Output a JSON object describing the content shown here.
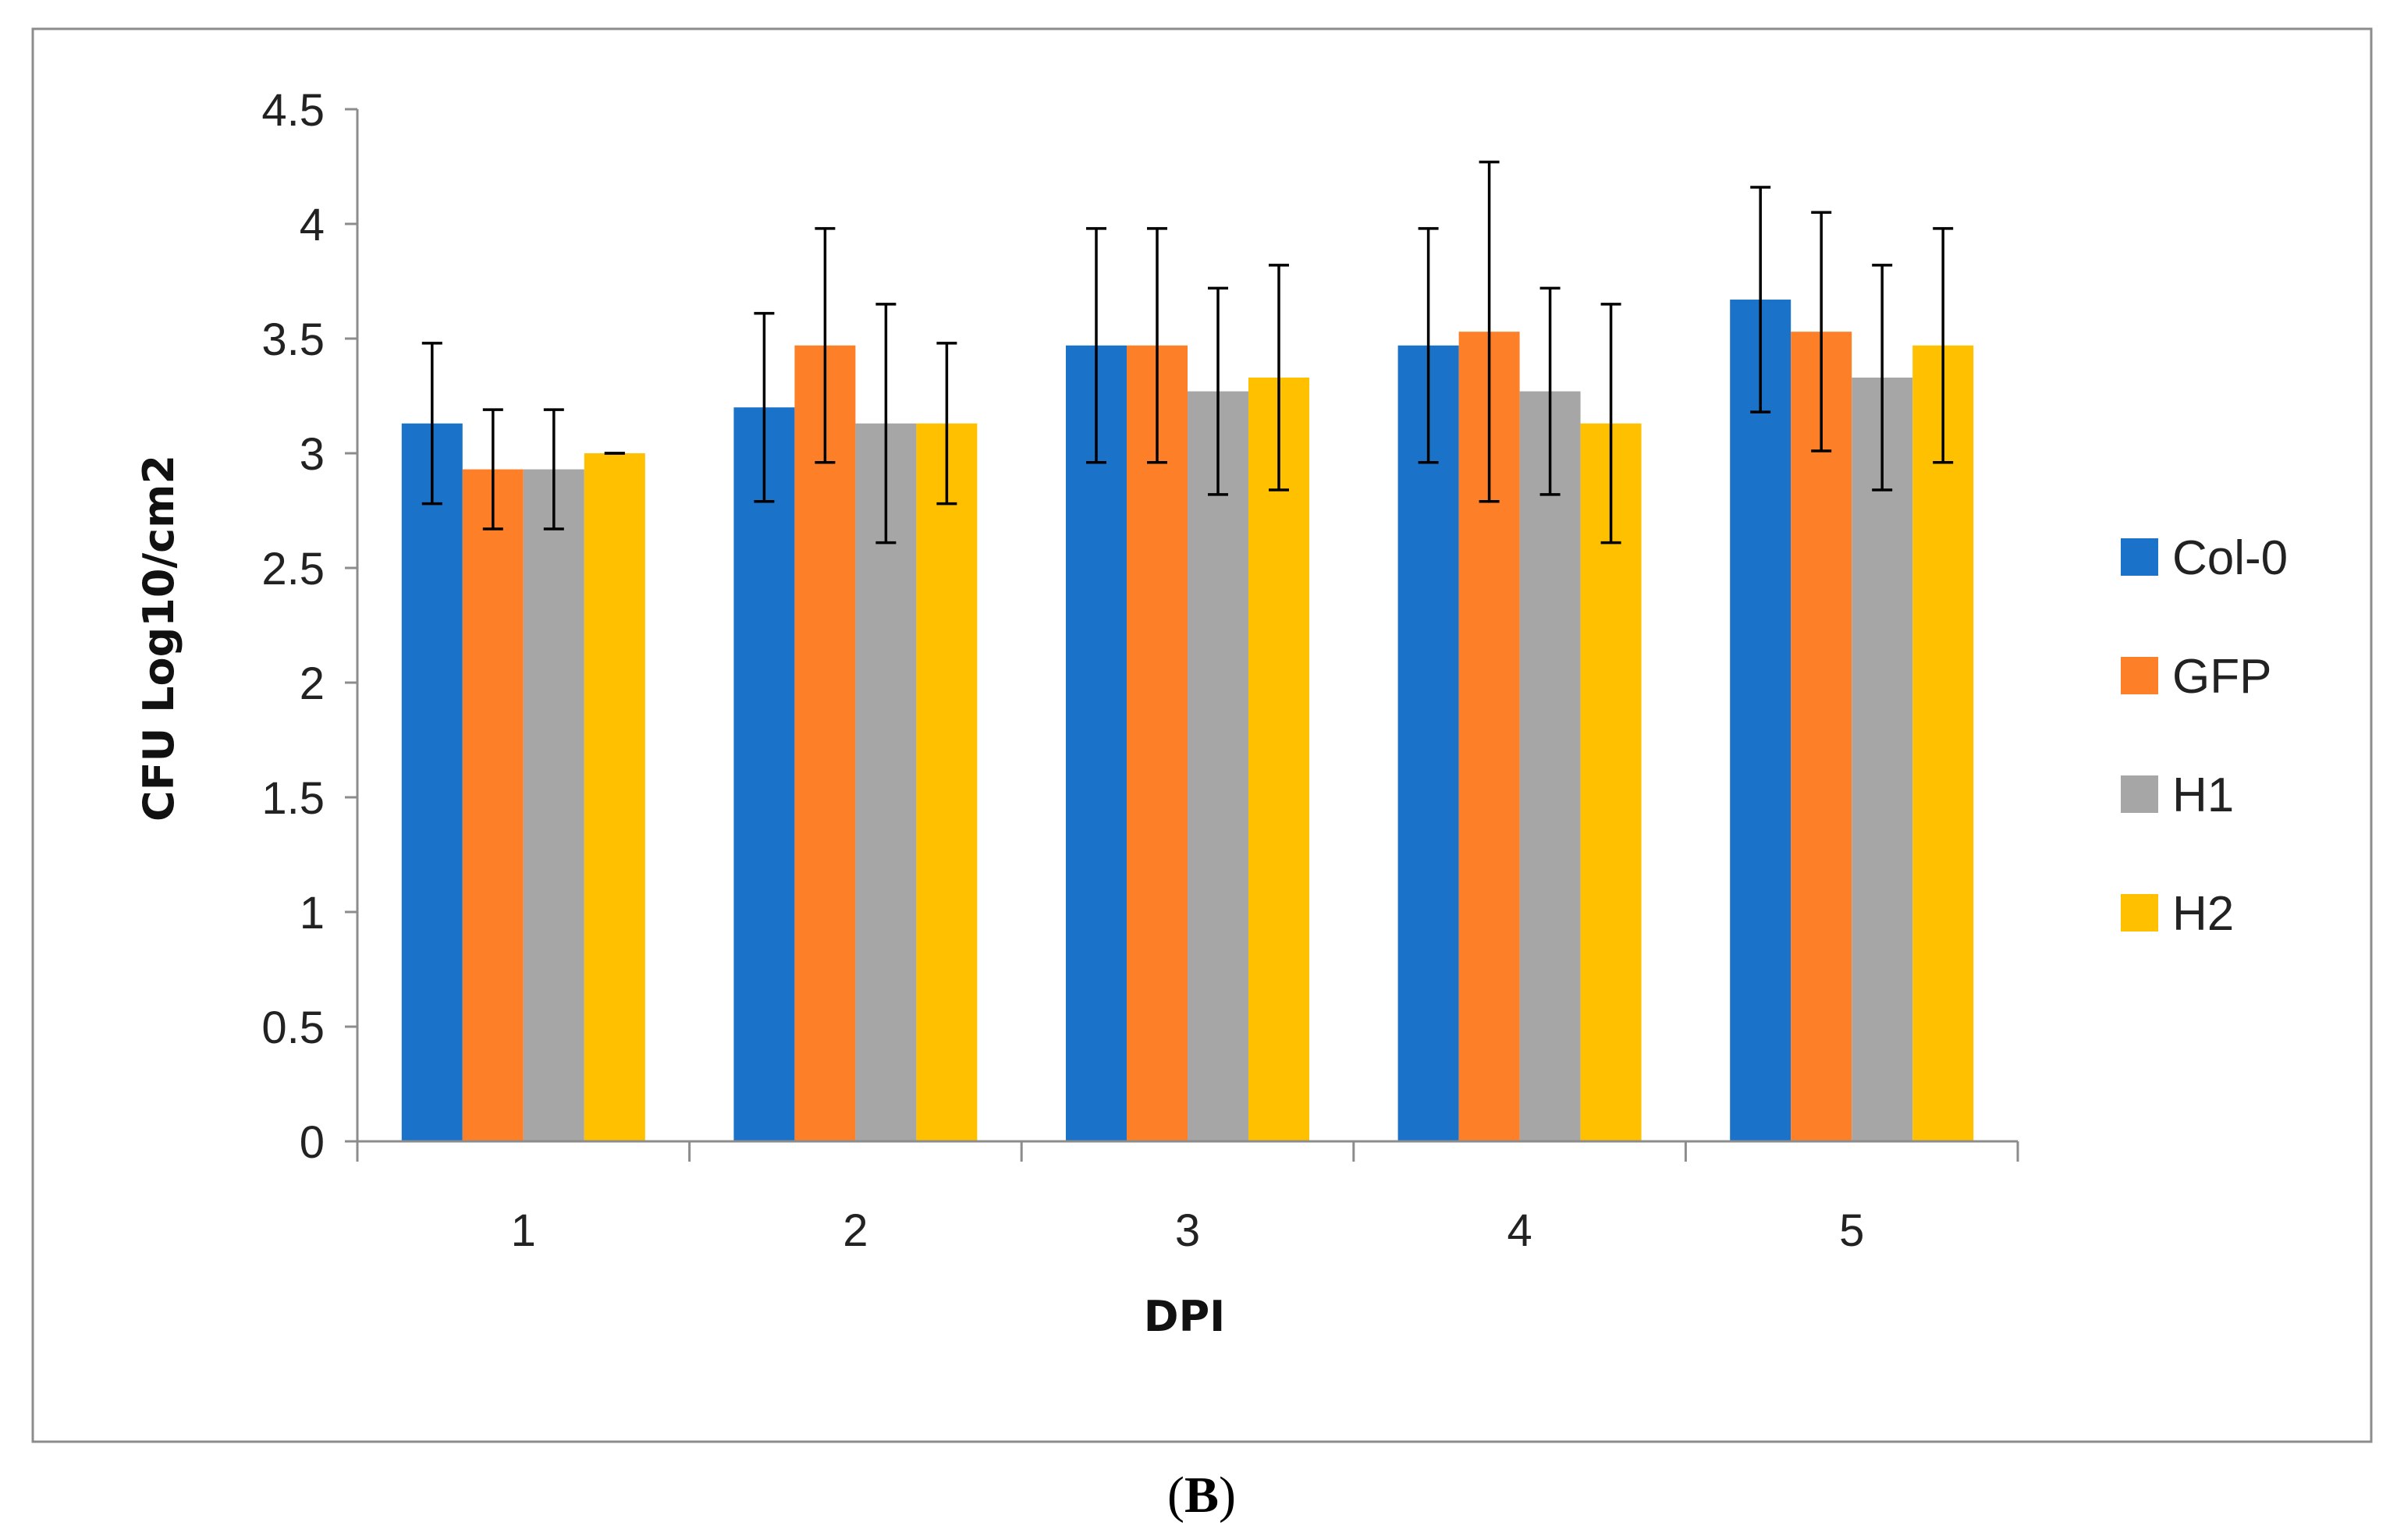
{
  "chart_data": {
    "type": "bar",
    "title": "",
    "xlabel": "DPI",
    "ylabel": "CFU Log10/cm2",
    "ylim": [
      0,
      4.5
    ],
    "yticks": [
      "0",
      "0.5",
      "1",
      "1.5",
      "2",
      "2.5",
      "3",
      "3.5",
      "4",
      "4.5"
    ],
    "categories": [
      "1",
      "2",
      "3",
      "4",
      "5"
    ],
    "series": [
      {
        "name": "Col-0",
        "color": "#1a73c8",
        "values": [
          3.13,
          3.2,
          3.47,
          3.47,
          3.67
        ],
        "errors": [
          0.35,
          0.41,
          0.51,
          0.51,
          0.49
        ]
      },
      {
        "name": "GFP",
        "color": "#fd7f28",
        "values": [
          2.93,
          3.47,
          3.47,
          3.53,
          3.53
        ],
        "errors": [
          0.26,
          0.51,
          0.51,
          0.74,
          0.52
        ]
      },
      {
        "name": "H1",
        "color": "#a6a6a6",
        "values": [
          2.93,
          3.13,
          3.27,
          3.27,
          3.33
        ],
        "errors": [
          0.26,
          0.52,
          0.45,
          0.45,
          0.49
        ]
      },
      {
        "name": "H2",
        "color": "#ffc000",
        "values": [
          3.0,
          3.13,
          3.33,
          3.13,
          3.47
        ],
        "errors": [
          0.0,
          0.35,
          0.49,
          0.52,
          0.51
        ]
      }
    ],
    "grid": false,
    "legend_position": "right"
  },
  "caption": {
    "open": "(",
    "letter": "B",
    "close": ")"
  }
}
